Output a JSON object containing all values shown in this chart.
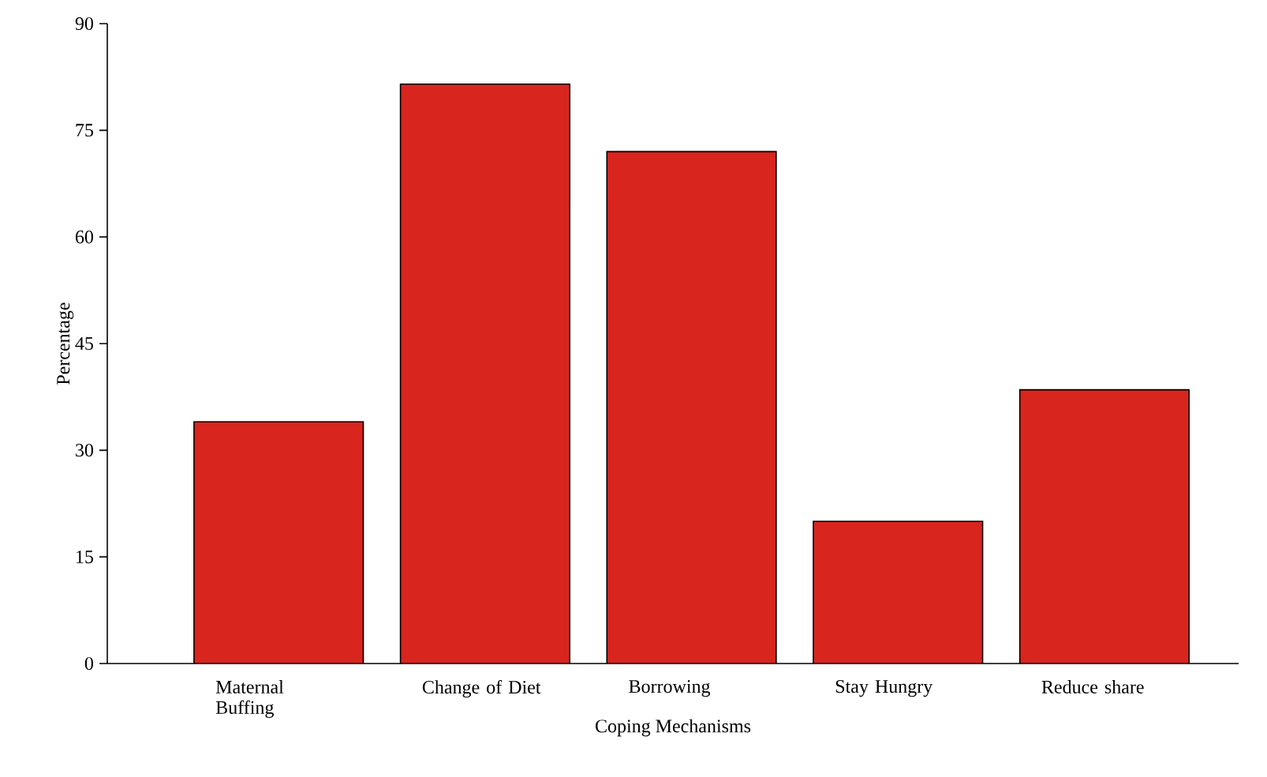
{
  "chart_data": {
    "type": "bar",
    "xlabel": "Coping Mechanisms",
    "ylabel": "Percentage",
    "categories": [
      "Maternal Buffing",
      "Change of Diet",
      "Borrowing",
      "Stay Hungry",
      "Reduce share"
    ],
    "values": [
      34,
      81.5,
      72,
      20,
      38.5
    ],
    "color": "#d8251e",
    "ylim": [
      0,
      90
    ],
    "yticks": [
      0,
      15,
      30,
      45,
      60,
      75,
      90
    ]
  }
}
